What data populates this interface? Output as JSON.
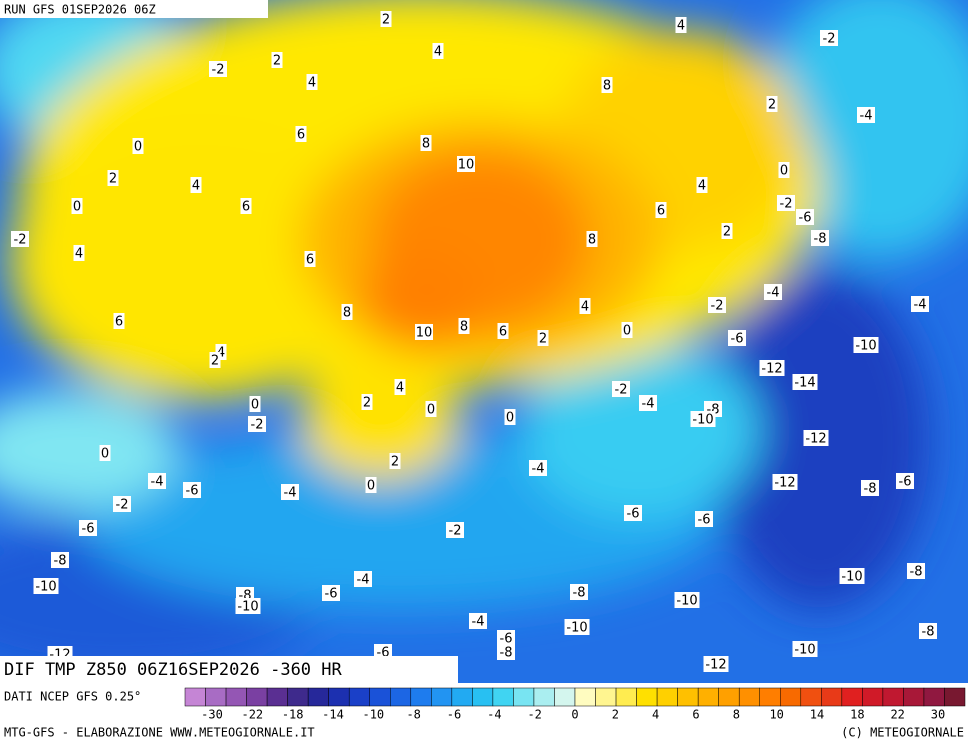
{
  "header": {
    "run": "RUN GFS 01SEP2026 06Z"
  },
  "map": {
    "contour_labels": [
      "2",
      "4",
      "4",
      "-2",
      "-2",
      "2",
      "4",
      "8",
      "2",
      "-4",
      "0",
      "6",
      "8",
      "10",
      "2",
      "4",
      "0",
      "4",
      "0",
      "6",
      "-2",
      "-6",
      "6",
      "-2",
      "8",
      "2",
      "-8",
      "4",
      "6",
      "-4",
      "-2",
      "4",
      "-4",
      "8",
      "6",
      "10",
      "8",
      "6",
      "2",
      "0",
      "-6",
      "-10",
      "4",
      "2",
      "-12",
      "-14",
      "4",
      "-2",
      "2",
      "0",
      "0",
      "0",
      "-4",
      "-8",
      "-10",
      "-2",
      "-12",
      "0",
      "2",
      "-4",
      "-4",
      "-12",
      "-8",
      "-6",
      "-6",
      "-4",
      "0",
      "-2",
      "-6",
      "-6",
      "-6",
      "-2",
      "-8",
      "-10",
      "-8",
      "-4",
      "-10",
      "-6",
      "-8",
      "-8",
      "-10",
      "-10",
      "-4",
      "-8",
      "-10",
      "-6",
      "-8",
      "-10",
      "-12",
      "-12",
      "-6"
    ]
  },
  "footer": {
    "title": "DIF TMP Z850 06Z16SEP2026 -360 HR",
    "source": "DATI NCEP GFS 0.25°",
    "colorbar": {
      "colors": [
        "#c585d5",
        "#a86cc4",
        "#9456b4",
        "#7a40a2",
        "#5a2f92",
        "#3e2a8c",
        "#26289a",
        "#1c30b0",
        "#1a40c8",
        "#1a52d8",
        "#1c66e4",
        "#1e7cee",
        "#2294f2",
        "#22aaf2",
        "#28c0f2",
        "#40d4f2",
        "#78e4f2",
        "#aaeef0",
        "#d4f6ee",
        "#fffcc0",
        "#fff590",
        "#ffec50",
        "#ffe000",
        "#ffd000",
        "#ffc000",
        "#ffb000",
        "#ffa000",
        "#ff9000",
        "#ff7e00",
        "#f86a00",
        "#f05010",
        "#e83a18",
        "#e02020",
        "#d01a28",
        "#c01830",
        "#a81838",
        "#901840",
        "#781830"
      ],
      "ticks": [
        -30,
        -22,
        -18,
        -14,
        -10,
        -8,
        -6,
        -4,
        -2,
        0,
        2,
        4,
        6,
        8,
        10,
        14,
        18,
        22,
        30
      ]
    },
    "credit": "MTG-GFS - ELABORAZIONE WWW.METEOGIORNALE.IT",
    "copyright": "(C) METEOGIORNALE"
  }
}
